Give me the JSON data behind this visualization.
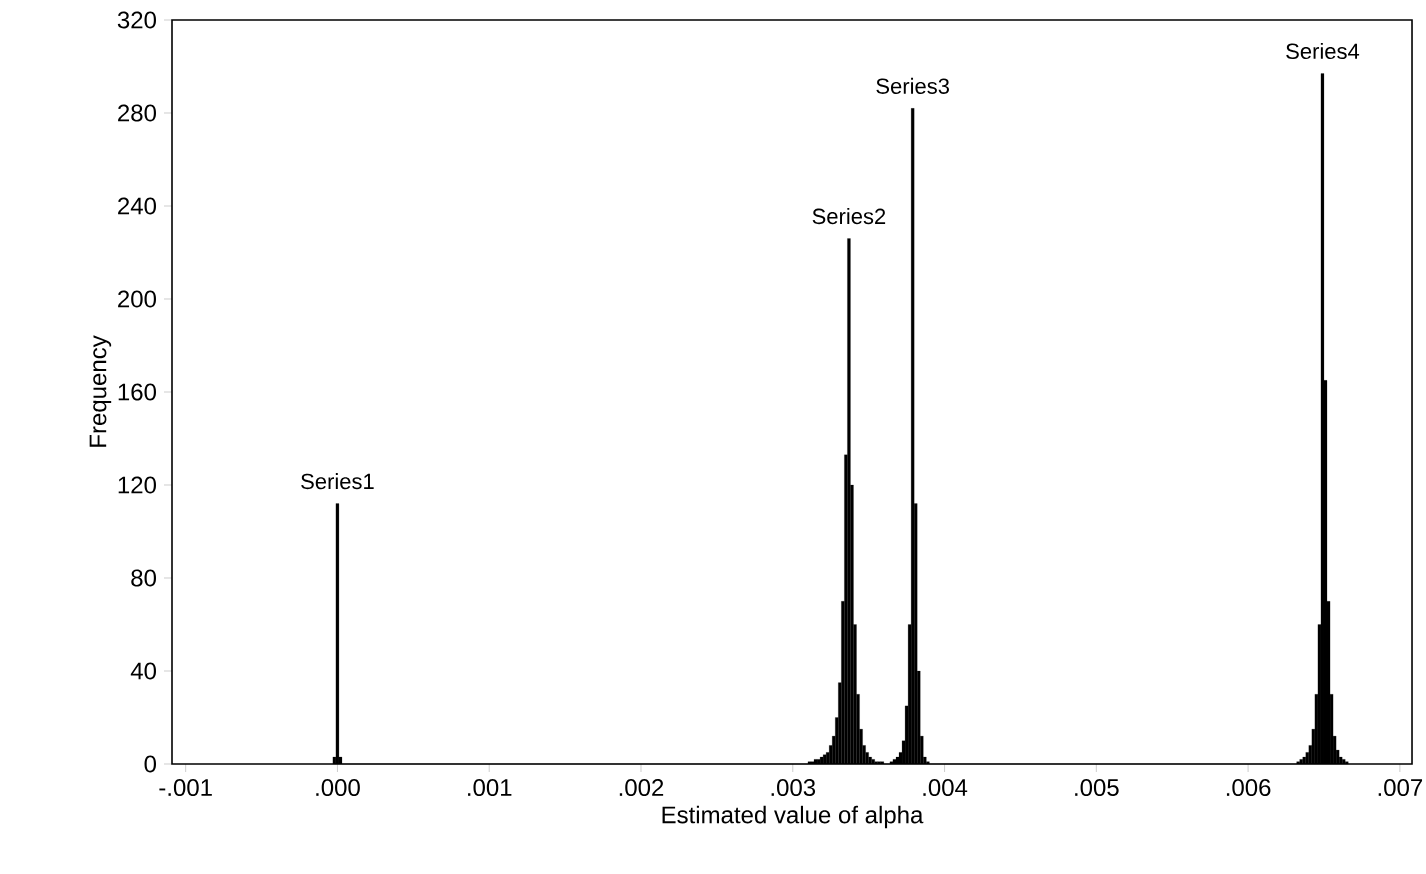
{
  "chart_data": {
    "type": "histogram",
    "xlabel": "Estimated value of alpha",
    "ylabel": "Frequency",
    "xlim": [
      -0.00109,
      0.00708
    ],
    "ylim": [
      0,
      320
    ],
    "xticks": [
      {
        "value": -0.001,
        "label": "-.001"
      },
      {
        "value": 0,
        "label": ".000"
      },
      {
        "value": 0.001,
        "label": ".001"
      },
      {
        "value": 0.002,
        "label": ".002"
      },
      {
        "value": 0.003,
        "label": ".003"
      },
      {
        "value": 0.004,
        "label": ".004"
      },
      {
        "value": 0.005,
        "label": ".005"
      },
      {
        "value": 0.006,
        "label": ".006"
      },
      {
        "value": 0.007,
        "label": ".007"
      }
    ],
    "yticks": [
      0,
      40,
      80,
      120,
      160,
      200,
      240,
      280,
      320
    ],
    "grid": false,
    "color": "#000000",
    "bins": [
      -3e-05,
      -1e-05,
      1e-05,
      3e-05,
      0.0031,
      0.00312,
      0.00314,
      0.00316,
      0.00318,
      0.0032,
      0.00322,
      0.00324,
      0.00326,
      0.00328,
      0.0033,
      0.00332,
      0.00334,
      0.00336,
      0.00338,
      0.0034,
      0.00342,
      0.00344,
      0.00346,
      0.00348,
      0.0035,
      0.00352,
      0.00354,
      0.00356,
      0.00358,
      0.0036,
      0.00364,
      0.00366,
      0.00368,
      0.0037,
      0.00372,
      0.00374,
      0.00376,
      0.00378,
      0.0038,
      0.00382,
      0.00384,
      0.00386,
      0.00388,
      0.0039,
      0.00632,
      0.00634,
      0.00636,
      0.00638,
      0.0064,
      0.00642,
      0.00644,
      0.00646,
      0.00648,
      0.0065,
      0.00652,
      0.00654,
      0.00656,
      0.00658,
      0.0066,
      0.00662,
      0.00664,
      0.00666
    ],
    "values": [
      3,
      112,
      3,
      0,
      1,
      1,
      2,
      2,
      3,
      4,
      5,
      8,
      12,
      20,
      35,
      70,
      133,
      226,
      120,
      60,
      30,
      15,
      8,
      5,
      3,
      2,
      1,
      1,
      1,
      0,
      1,
      2,
      3,
      5,
      10,
      25,
      60,
      282,
      112,
      40,
      12,
      3,
      1,
      0,
      1,
      2,
      3,
      5,
      8,
      15,
      30,
      60,
      297,
      165,
      70,
      30,
      12,
      6,
      3,
      2,
      1
    ],
    "annotations": [
      {
        "text": "Series1",
        "x": 0,
        "y": 112
      },
      {
        "text": "Series2",
        "x": 0.00337,
        "y": 226
      },
      {
        "text": "Series3",
        "x": 0.00379,
        "y": 282
      },
      {
        "text": "Series4",
        "x": 0.00649,
        "y": 297
      }
    ]
  }
}
